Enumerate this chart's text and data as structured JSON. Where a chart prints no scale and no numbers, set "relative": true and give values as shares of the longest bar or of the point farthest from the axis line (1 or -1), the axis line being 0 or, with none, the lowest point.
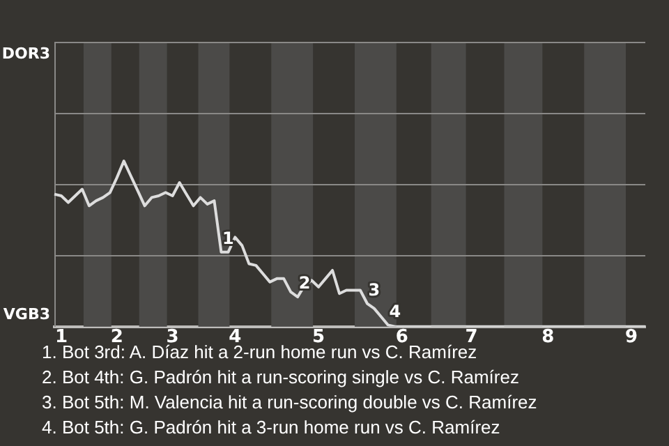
{
  "chart_data": {
    "type": "line",
    "relative": true,
    "categories": [
      null,
      "1",
      null,
      null,
      null,
      null,
      null,
      null,
      null,
      "2",
      null,
      null,
      null,
      null,
      null,
      null,
      null,
      "3",
      null,
      null,
      null,
      null,
      null,
      null,
      null,
      null,
      "4",
      null,
      null,
      null,
      null,
      null,
      null,
      null,
      null,
      null,
      null,
      null,
      "5",
      null,
      null,
      null,
      null,
      null,
      null,
      null,
      null,
      null,
      null,
      null,
      "6",
      null,
      null,
      null,
      null,
      null,
      null,
      null,
      null,
      null,
      "7",
      null,
      null,
      null,
      null,
      null,
      null,
      null,
      null,
      null,
      null,
      "8",
      null,
      null,
      null,
      null,
      null,
      null,
      null,
      null,
      null,
      null,
      null,
      "9",
      null,
      null
    ],
    "series": [
      {
        "color": "#dddddd",
        "values": [
          0.8,
          0.79,
          0.75,
          0.79,
          0.83,
          0.73,
          0.76,
          0.78,
          0.81,
          0.9,
          1,
          0.91,
          0.82,
          0.73,
          0.78,
          0.79,
          0.81,
          0.79,
          0.87,
          0.8,
          0.73,
          0.78,
          0.74,
          0.76,
          0.45,
          0.45,
          0.54,
          0.49,
          0.38,
          0.37,
          0.32,
          0.27,
          0.29,
          0.29,
          0.21,
          0.18,
          0.25,
          0.28,
          0.24,
          0.29,
          0.34,
          0.2,
          0.22,
          0.22,
          0.22,
          0.14,
          0.11,
          0.06,
          0.01,
          0,
          0,
          0,
          0,
          0,
          0,
          0,
          0,
          0,
          0,
          0,
          0,
          0,
          0,
          0,
          0,
          0,
          0,
          0,
          0,
          0,
          0,
          0,
          0,
          0,
          0,
          0,
          0,
          0,
          0,
          0,
          0,
          0,
          0,
          0,
          0,
          0
        ]
      }
    ],
    "marker": "none",
    "line_style": "solid",
    "ref_lines": [
      {
        "axis": "y",
        "value": 0.43,
        "color": "#8a8987"
      },
      {
        "axis": "y",
        "value": 0.86,
        "color": "#8a8987"
      },
      {
        "axis": "y",
        "value": 1.29,
        "color": "#8a8987"
      },
      {
        "axis": "y",
        "value": 1.72,
        "color": "#8a8987"
      }
    ],
    "annotations": [
      "DOR3",
      "VGB3",
      {
        "text": "1",
        "y": 0.45
      },
      {
        "text": "2",
        "y": 0.18
      },
      {
        "text": "3",
        "y": 0.14
      },
      {
        "text": "4",
        "y": 0.01
      },
      "1. Bot 3rd: A. Díaz hit a 2-run home run vs C. Ramírez",
      "2. Bot 4th: G. Padrón hit a run-scoring single vs C. Ramírez",
      "3. Bot 5th: M. Valencia hit a run-scoring double vs C. Ramírez",
      "4. Bot 5th: G. Padrón hit a 3-run home run vs C. Ramírez"
    ]
  }
}
